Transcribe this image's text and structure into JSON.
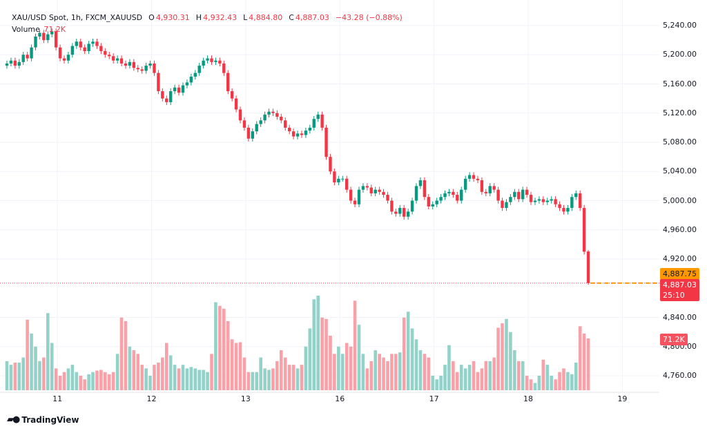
{
  "header": {
    "symbol": "XAU/USD Spot, 1h, FXCM_XAUUSD",
    "o_label": "O",
    "o": "4,930.31",
    "h_label": "H",
    "h": "4,932.43",
    "l_label": "L",
    "l": "4,884.80",
    "c_label": "C",
    "c": "4,887.03",
    "change": "−43.28 (−0.88%)",
    "volume_label": "Volume",
    "volume": "71.2K"
  },
  "tags": {
    "last_price_orange": "4,887.75",
    "last_price": "4,887.03",
    "countdown": "25:10",
    "volume": "71.2K"
  },
  "brand": "TradingView",
  "colors": {
    "up": "#089981",
    "down": "#f23645",
    "up_vol": "#92d2c8",
    "down_vol": "#f9a1a8",
    "orange": "#ff9800"
  },
  "chart_data": {
    "type": "candlestick",
    "title": "XAU/USD Spot, 1h, FXCM_XAUUSD",
    "ylim": [
      4740,
      5260
    ],
    "y_ticks": [
      "5,240.00",
      "5,200.00",
      "5,160.00",
      "5,120.00",
      "5,080.00",
      "5,040.00",
      "5,000.00",
      "4,960.00",
      "4,920.00",
      "4,840.00",
      "4,800.00",
      "4,760.00"
    ],
    "y_tick_values": [
      5240,
      5200,
      5160,
      5120,
      5080,
      5040,
      5000,
      4960,
      4920,
      4840,
      4800,
      4760
    ],
    "x_ticks": [
      "11",
      "12",
      "13",
      "16",
      "17",
      "18",
      "19"
    ],
    "x_tick_index": [
      13,
      36,
      59,
      82,
      105,
      128,
      151
    ],
    "first_open": 5185,
    "closes": [
      5188,
      5192,
      5185,
      5190,
      5200,
      5195,
      5210,
      5225,
      5230,
      5220,
      5228,
      5232,
      5210,
      5195,
      5192,
      5200,
      5212,
      5218,
      5210,
      5205,
      5215,
      5218,
      5212,
      5205,
      5200,
      5198,
      5192,
      5195,
      5188,
      5185,
      5190,
      5182,
      5180,
      5178,
      5185,
      5188,
      5175,
      5150,
      5140,
      5135,
      5150,
      5155,
      5148,
      5158,
      5162,
      5170,
      5175,
      5185,
      5192,
      5195,
      5190,
      5192,
      5188,
      5175,
      5150,
      5140,
      5125,
      5110,
      5100,
      5085,
      5095,
      5105,
      5110,
      5118,
      5122,
      5120,
      5115,
      5110,
      5100,
      5095,
      5088,
      5092,
      5090,
      5096,
      5100,
      5112,
      5118,
      5100,
      5060,
      5040,
      5025,
      5030,
      5030,
      5015,
      5000,
      4995,
      5015,
      5020,
      5018,
      5010,
      5015,
      5012,
      5008,
      5000,
      4985,
      4982,
      4990,
      4978,
      4985,
      5000,
      5020,
      5028,
      5005,
      4992,
      4995,
      5000,
      5005,
      5010,
      5012,
      5008,
      5000,
      5015,
      5030,
      5035,
      5030,
      5028,
      5012,
      5010,
      5020,
      5015,
      5000,
      4990,
      4998,
      5005,
      5012,
      5002,
      5015,
      5008,
      4998,
      5000,
      5002,
      4998,
      5000,
      5002,
      4995,
      4990,
      4985,
      4990,
      5005,
      5010,
      4990,
      4930,
      4887.03
    ],
    "last_candle": {
      "open": 4930.31,
      "high": 4932.43,
      "low": 4884.8,
      "close": 4887.03
    },
    "volume_k": [
      40,
      35,
      38,
      38,
      45,
      97,
      78,
      60,
      40,
      45,
      106,
      65,
      30,
      20,
      25,
      30,
      35,
      25,
      20,
      15,
      22,
      25,
      27,
      28,
      25,
      22,
      25,
      50,
      100,
      95,
      60,
      55,
      50,
      35,
      30,
      20,
      35,
      38,
      45,
      65,
      48,
      35,
      30,
      35,
      30,
      32,
      30,
      28,
      28,
      25,
      50,
      121,
      116,
      112,
      95,
      70,
      65,
      66,
      45,
      25,
      25,
      25,
      45,
      30,
      28,
      30,
      40,
      55,
      45,
      35,
      35,
      30,
      35,
      60,
      85,
      125,
      130,
      100,
      98,
      75,
      50,
      60,
      50,
      65,
      60,
      123,
      90,
      50,
      30,
      40,
      55,
      50,
      45,
      40,
      50,
      50,
      52,
      100,
      108,
      85,
      70,
      55,
      50,
      45,
      20,
      15,
      20,
      35,
      62,
      40,
      25,
      35,
      30,
      35,
      40,
      25,
      30,
      40,
      40,
      45,
      86,
      92,
      98,
      80,
      55,
      40,
      40,
      20,
      15,
      10,
      20,
      42,
      35,
      20,
      15,
      25,
      30,
      25,
      22,
      38,
      88,
      78,
      71.2
    ]
  }
}
